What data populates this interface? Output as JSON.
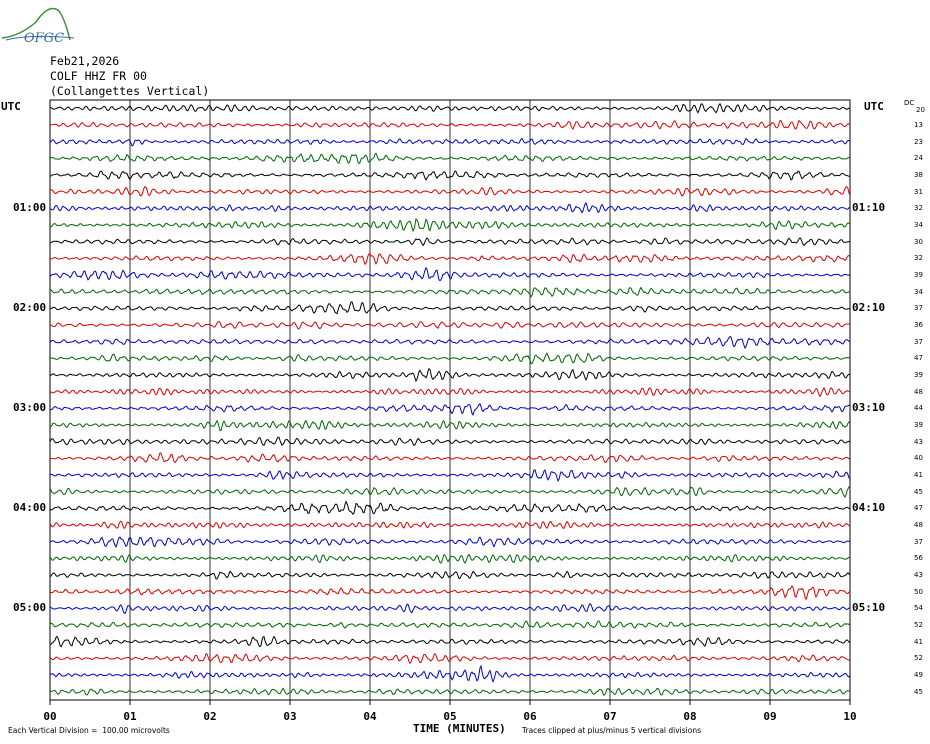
{
  "chart_data": {
    "type": "line",
    "logo_text": "OFGC",
    "date": "Feb21,2026",
    "station": "COLF HHZ FR 00",
    "station_name": "(Collangettes Vertical)",
    "left_axis_label": "UTC",
    "right_axis_label": "UTC",
    "dc_header": "DC",
    "xlabel": "TIME (MINUTES)",
    "x_ticks": [
      "00",
      "01",
      "02",
      "03",
      "04",
      "05",
      "06",
      "07",
      "08",
      "09",
      "10"
    ],
    "xlim": [
      0,
      10
    ],
    "grid": true,
    "left_time_labels": [
      {
        "row": 6,
        "text": "01:00"
      },
      {
        "row": 12,
        "text": "02:00"
      },
      {
        "row": 18,
        "text": "03:00"
      },
      {
        "row": 24,
        "text": "04:00"
      },
      {
        "row": 30,
        "text": "05:00"
      }
    ],
    "right_time_labels": [
      {
        "row": 6,
        "text": "01:10"
      },
      {
        "row": 12,
        "text": "02:10"
      },
      {
        "row": 18,
        "text": "03:10"
      },
      {
        "row": 24,
        "text": "04:10"
      },
      {
        "row": 30,
        "text": "05:10"
      }
    ],
    "trace_colors": [
      "#000000",
      "#dd0000",
      "#0000cc",
      "#006600"
    ],
    "dc_offsets": [
      20,
      13,
      23,
      24,
      38,
      31,
      32,
      34,
      30,
      32,
      39,
      34,
      37,
      36,
      37,
      47,
      39,
      48,
      44,
      39,
      43,
      40,
      41,
      45,
      47,
      48,
      37,
      56,
      43,
      50,
      54,
      52,
      41,
      52,
      49,
      45
    ],
    "footer_left": "Each Vertical Division =  100.00 microvolts",
    "footer_right": "Traces clipped at plus/minus 5 vertical divisions"
  }
}
